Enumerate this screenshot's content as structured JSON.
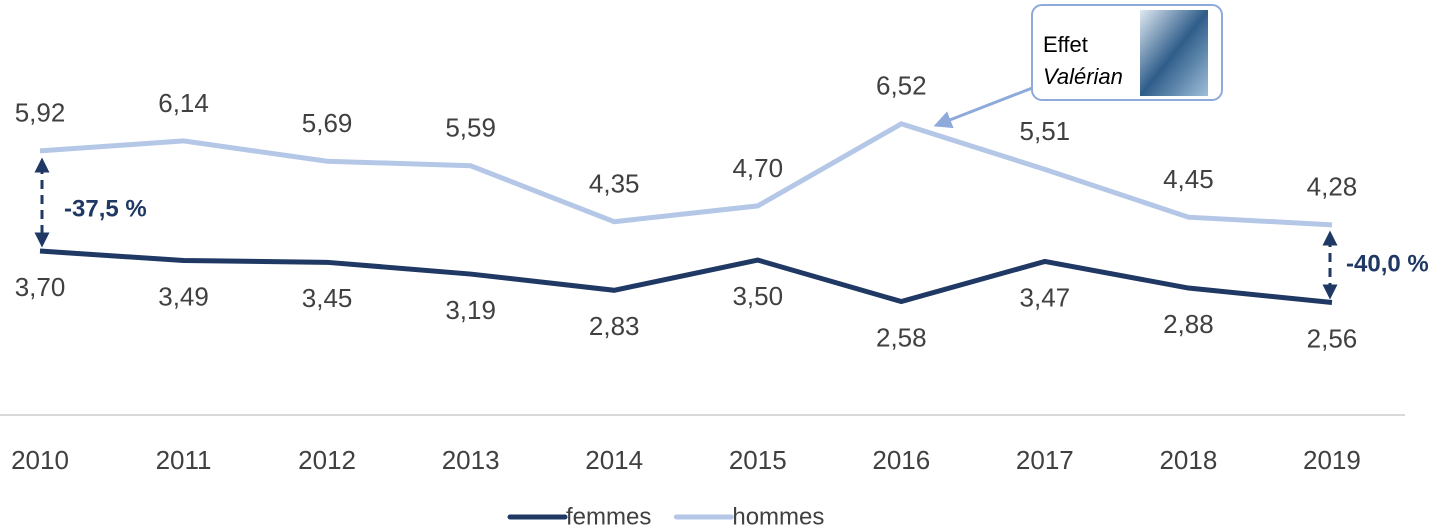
{
  "chart_data": {
    "type": "line",
    "categories": [
      "2010",
      "2011",
      "2012",
      "2013",
      "2014",
      "2015",
      "2016",
      "2017",
      "2018",
      "2019"
    ],
    "series": [
      {
        "name": "femmes",
        "color": "#1f3864",
        "values": [
          3.7,
          3.49,
          3.45,
          3.19,
          2.83,
          3.5,
          2.58,
          3.47,
          2.88,
          2.56
        ],
        "value_labels": [
          "3,70",
          "3,49",
          "3,45",
          "3,19",
          "2,83",
          "3,50",
          "2,58",
          "3,47",
          "2,88",
          "2,56"
        ]
      },
      {
        "name": "hommes",
        "color": "#b4c7e7",
        "values": [
          5.92,
          6.14,
          5.69,
          5.59,
          4.35,
          4.7,
          6.52,
          5.51,
          4.45,
          4.28
        ],
        "value_labels": [
          "5,92",
          "6,14",
          "5,69",
          "5,59",
          "4,35",
          "4,70",
          "6,52",
          "5,51",
          "4,45",
          "4,28"
        ]
      }
    ],
    "ylim": [
      0,
      8
    ],
    "annotations": [
      "-37,5 %",
      "-40,0 %"
    ],
    "callout": {
      "line1": "Effet",
      "line2": "Valérian"
    }
  }
}
